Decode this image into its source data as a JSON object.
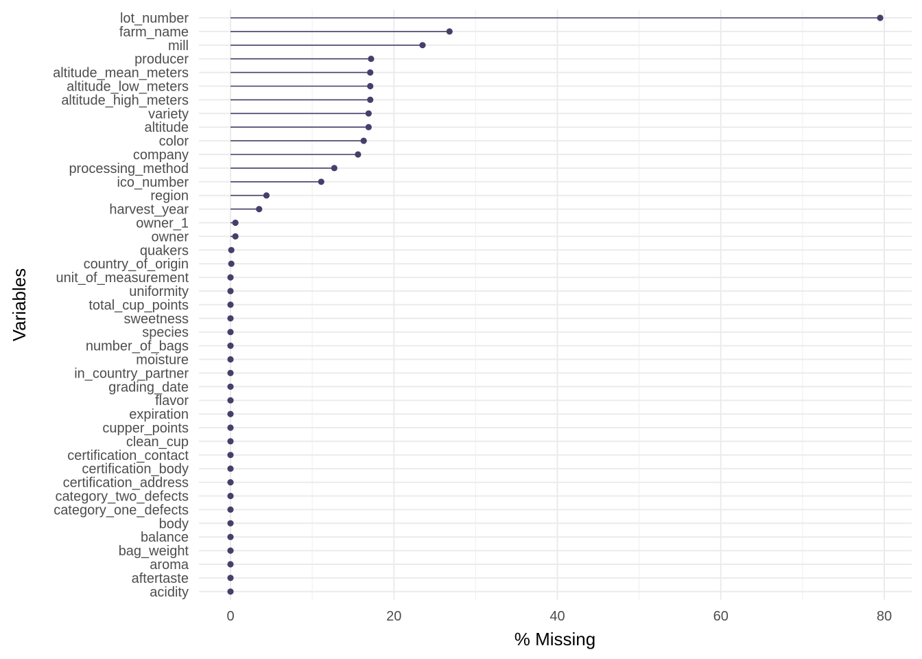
{
  "chart_data": {
    "type": "lollipop",
    "xlabel": "% Missing",
    "ylabel": "Variables",
    "xlim": [
      -2,
      83
    ],
    "x_ticks": [
      0,
      20,
      40,
      60,
      80
    ],
    "x_tick_labels": [
      "0",
      "20",
      "40",
      "60",
      "80"
    ],
    "grid": true,
    "legend": "none",
    "color": "#453f6b",
    "categories": [
      "lot_number",
      "farm_name",
      "mill",
      "producer",
      "altitude_mean_meters",
      "altitude_low_meters",
      "altitude_high_meters",
      "variety",
      "altitude",
      "color",
      "company",
      "processing_method",
      "ico_number",
      "region",
      "harvest_year",
      "owner_1",
      "owner",
      "quakers",
      "country_of_origin",
      "unit_of_measurement",
      "uniformity",
      "total_cup_points",
      "sweetness",
      "species",
      "number_of_bags",
      "moisture",
      "in_country_partner",
      "grading_date",
      "flavor",
      "expiration",
      "cupper_points",
      "clean_cup",
      "certification_contact",
      "certification_body",
      "certification_address",
      "category_two_defects",
      "category_one_defects",
      "body",
      "balance",
      "bag_weight",
      "aroma",
      "aftertaste",
      "acidity"
    ],
    "values": [
      79.5,
      26.8,
      23.5,
      17.2,
      17.1,
      17.1,
      17.1,
      16.9,
      16.9,
      16.3,
      15.6,
      12.7,
      11.1,
      4.4,
      3.5,
      0.6,
      0.6,
      0.1,
      0.1,
      0,
      0,
      0,
      0,
      0,
      0,
      0,
      0,
      0,
      0,
      0,
      0,
      0,
      0,
      0,
      0,
      0,
      0,
      0,
      0,
      0,
      0,
      0,
      0
    ]
  }
}
